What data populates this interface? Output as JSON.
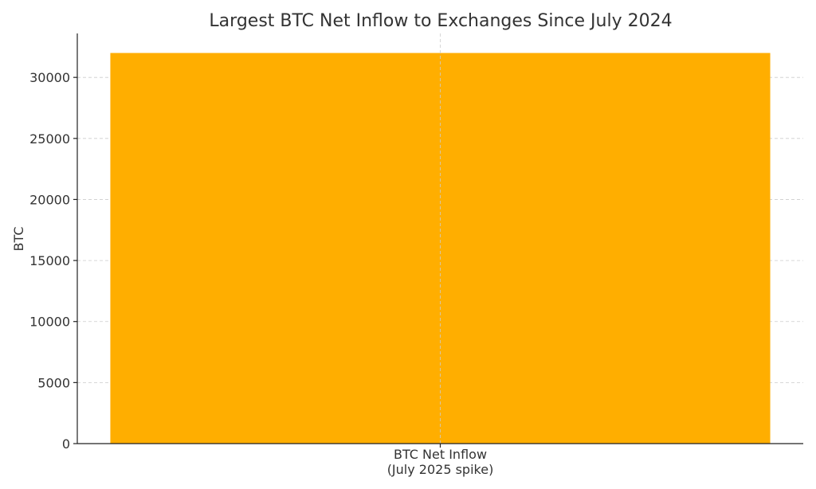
{
  "chart_data": {
    "type": "bar",
    "title": "Largest BTC Net Inflow to Exchanges Since July 2024",
    "xlabel": "",
    "ylabel": "BTC",
    "categories": [
      [
        "BTC Net Inflow",
        "(July 2025 spike)"
      ]
    ],
    "values": [
      32000
    ],
    "ylim": [
      0,
      33600
    ],
    "yticks": [
      0,
      5000,
      10000,
      15000,
      20000,
      25000,
      30000
    ],
    "grid": true,
    "colors": {
      "bar": "#FFAE00"
    }
  }
}
